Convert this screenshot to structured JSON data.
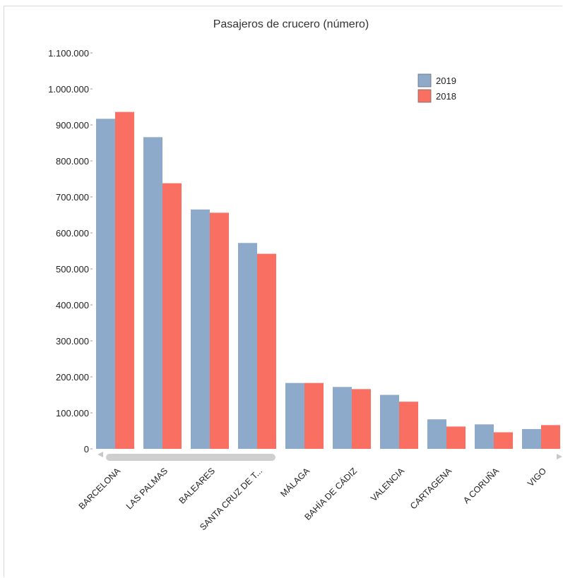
{
  "chart_data": {
    "type": "bar",
    "title": "Pasajeros de crucero (número)",
    "xlabel": "",
    "ylabel": "",
    "ylim": [
      0,
      1100000
    ],
    "yticks": [
      0,
      100000,
      200000,
      300000,
      400000,
      500000,
      600000,
      700000,
      800000,
      900000,
      1000000,
      1100000
    ],
    "ytick_labels": [
      "0",
      "100.000",
      "200.000",
      "300.000",
      "400.000",
      "500.000",
      "600.000",
      "700.000",
      "800.000",
      "900.000",
      "1.000.000",
      "1.100.000"
    ],
    "categories": [
      "BARCELONA",
      "LAS PALMAS",
      "BALEARES",
      "SANTA CRUZ DE T...",
      "MÁLAGA",
      "BAHÍA DE CÁDIZ",
      "VALENCIA",
      "CARTAGENA",
      "A CORUÑA",
      "VIGO"
    ],
    "series": [
      {
        "name": "2019",
        "color": "#8eaacb",
        "values": [
          917000,
          866000,
          665000,
          572000,
          183000,
          172000,
          150000,
          82000,
          68000,
          55000
        ]
      },
      {
        "name": "2018",
        "color": "#f97062",
        "values": [
          936000,
          738000,
          656000,
          542000,
          183000,
          166000,
          131000,
          62000,
          46000,
          66000
        ]
      }
    ],
    "legend_position": "top-right",
    "grid": false
  }
}
